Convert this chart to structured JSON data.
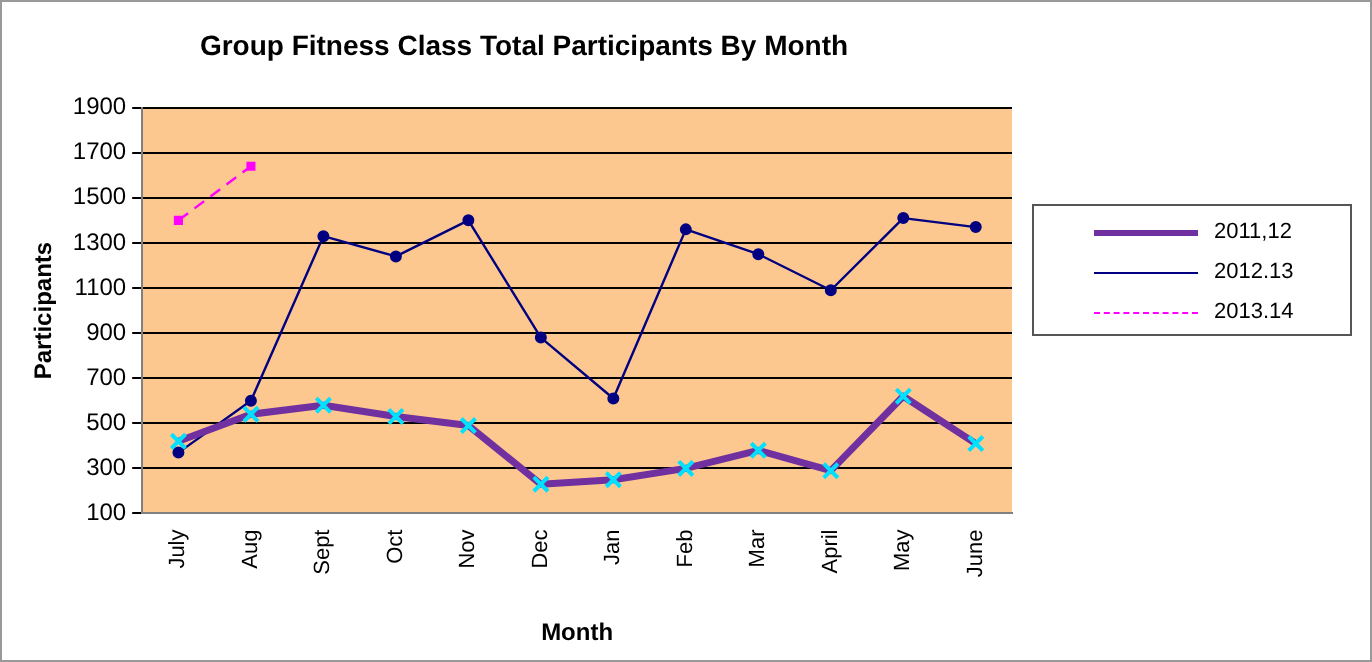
{
  "chart_data": {
    "type": "line",
    "title": "Group Fitness Class Total Participants By Month",
    "xlabel": "Month",
    "ylabel": "Participants",
    "categories": [
      "July",
      "Aug",
      "Sept",
      "Oct",
      "Nov",
      "Dec",
      "Jan",
      "Feb",
      "Mar",
      "April",
      "May",
      "June"
    ],
    "series": [
      {
        "name": "2011,12",
        "color": "#7030a0",
        "marker": "cross",
        "line_style": "solid",
        "values": [
          420,
          540,
          580,
          530,
          490,
          230,
          250,
          300,
          380,
          290,
          620,
          410
        ]
      },
      {
        "name": "2012.13",
        "color": "#000080",
        "marker": "circle",
        "line_style": "solid",
        "values": [
          370,
          600,
          1330,
          1240,
          1400,
          880,
          610,
          1360,
          1250,
          1090,
          1410,
          1370
        ]
      },
      {
        "name": "2013.14",
        "color": "#ff00ff",
        "marker": "square",
        "line_style": "dashed",
        "values": [
          1400,
          1640,
          null,
          null,
          null,
          null,
          null,
          null,
          null,
          null,
          null,
          null
        ]
      }
    ],
    "ylim": [
      100,
      1900
    ],
    "yticks": [
      100,
      300,
      500,
      700,
      900,
      1100,
      1300,
      1500,
      1700,
      1900
    ],
    "grid": "y",
    "legend": "right"
  }
}
